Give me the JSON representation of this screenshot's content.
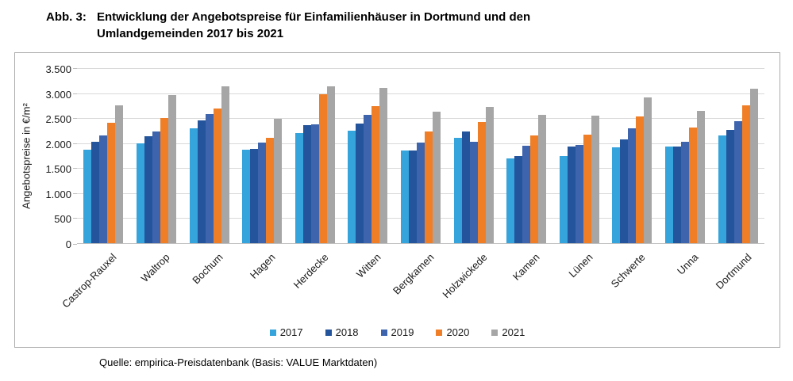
{
  "figure": {
    "label": "Abb. 3:",
    "title_line1": "Entwicklung der Angebotspreise für Einfamilienhäuser in Dortmund und den",
    "title_line2": "Umlandgemeinden 2017 bis 2021",
    "source": "Quelle: empirica-Preisdatenbank (Basis: VALUE Marktdaten)"
  },
  "chart_data": {
    "type": "bar",
    "title": "Entwicklung der Angebotspreise für Einfamilienhäuser in Dortmund und den Umlandgemeinden 2017 bis 2021",
    "xlabel": "",
    "ylabel": "Angebotspreise in €/m²",
    "ylim": [
      0,
      3500
    ],
    "ytick_step": 500,
    "ytick_labels": [
      "0",
      "500",
      "1.000",
      "1.500",
      "2.000",
      "2.500",
      "3.000",
      "3.500"
    ],
    "grid": true,
    "legend_position": "bottom",
    "categories": [
      "Castrop-Rauxel",
      "Waltrop",
      "Bochum",
      "Hagen",
      "Herdecke",
      "Witten",
      "Bergkamen",
      "Holzwickede",
      "Kamen",
      "Lünen",
      "Schwerte",
      "Unna",
      "Dortmund"
    ],
    "series": [
      {
        "name": "2017",
        "color": "#35a3dc",
        "values": [
          1870,
          2000,
          2300,
          1870,
          2200,
          2250,
          1860,
          2100,
          1690,
          1740,
          1910,
          1930,
          2150
        ]
      },
      {
        "name": "2018",
        "color": "#24549b",
        "values": [
          2020,
          2140,
          2450,
          1890,
          2360,
          2390,
          1850,
          2230,
          1750,
          1930,
          2070,
          1940,
          2270
        ]
      },
      {
        "name": "2019",
        "color": "#3e64ae",
        "values": [
          2150,
          2230,
          2580,
          2010,
          2370,
          2570,
          2010,
          2030,
          1950,
          1970,
          2290,
          2020,
          2440
        ]
      },
      {
        "name": "2020",
        "color": "#f07e26",
        "values": [
          2410,
          2510,
          2700,
          2110,
          2980,
          2740,
          2230,
          2430,
          2160,
          2170,
          2540,
          2320,
          2750
        ]
      },
      {
        "name": "2021",
        "color": "#a6a6a6",
        "values": [
          2750,
          2960,
          3140,
          2490,
          3130,
          3100,
          2630,
          2720,
          2570,
          2550,
          2920,
          2640,
          3090
        ]
      }
    ]
  }
}
